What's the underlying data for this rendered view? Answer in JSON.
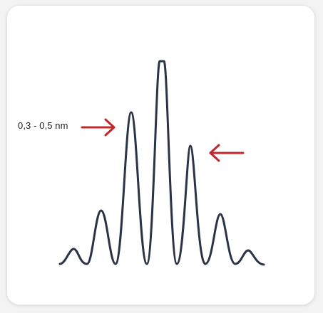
{
  "figure": {
    "annotation_label": "0,3 - 0,5 nm"
  },
  "colors": {
    "curve": "#2b3447",
    "arrow": "#c2272d",
    "card_background": "#ffffff",
    "page_background": "#f3f3f3"
  },
  "icons": {
    "left_arrow": "arrow-right-icon",
    "right_arrow": "arrow-left-icon"
  }
}
